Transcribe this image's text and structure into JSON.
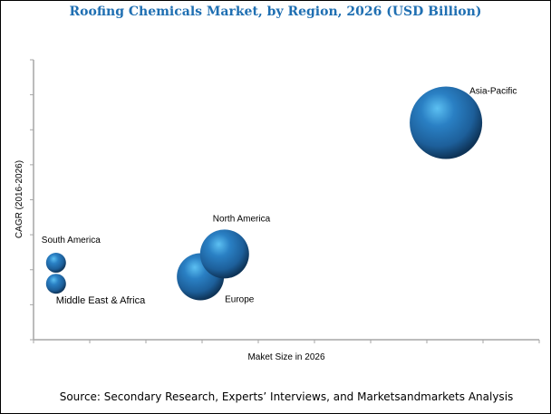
{
  "chart_data": {
    "type": "bubble",
    "title": "Roofing Chemicals Market, by Region, 2026 (USD Billion)",
    "xlabel": "Maket Size in 2026",
    "ylabel": "CAGR (2016-2026)",
    "xlim": [
      0,
      9
    ],
    "ylim": [
      0,
      8
    ],
    "x_ticks": 10,
    "y_ticks": 9,
    "tick_labels_shown": false,
    "grid": false,
    "legend": "none",
    "bubble_color": "#1f6fb2",
    "series": [
      {
        "name": "South America",
        "x": 0.4,
        "y": 2.2,
        "size": 11
      },
      {
        "name": "Middle East & Africa",
        "x": 0.4,
        "y": 1.6,
        "size": 11
      },
      {
        "name": "Europe",
        "x": 2.97,
        "y": 1.8,
        "size": 26
      },
      {
        "name": "North America",
        "x": 3.4,
        "y": 2.45,
        "size": 27
      },
      {
        "name": "Asia-Pacific",
        "x": 7.34,
        "y": 6.2,
        "size": 40
      }
    ]
  },
  "source": "Source: Secondary Research, Experts’ Interviews, and Marketsandmarkets Analysis"
}
